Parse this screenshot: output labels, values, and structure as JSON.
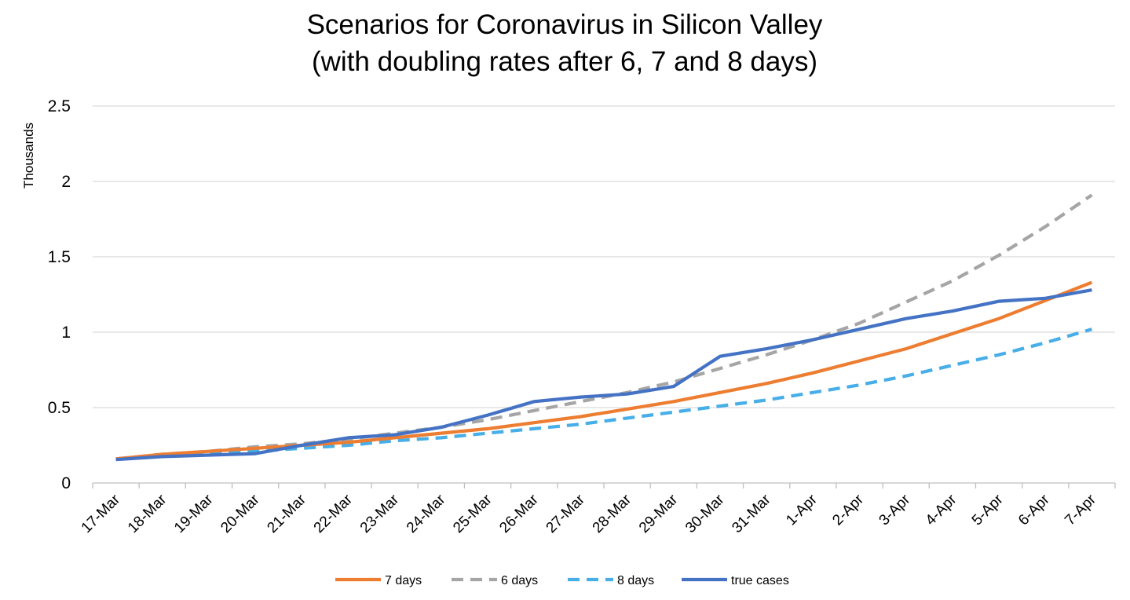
{
  "chart_data": {
    "type": "line",
    "title_lines": [
      "Scenarios for Coronavirus in Silicon Valley",
      "(with doubling rates after 6, 7 and 8 days)"
    ],
    "xlabel": "",
    "ylabel": "",
    "y_unit_label": "Thousands",
    "categories": [
      "17-Mar",
      "18-Mar",
      "19-Mar",
      "20-Mar",
      "21-Mar",
      "22-Mar",
      "23-Mar",
      "24-Mar",
      "25-Mar",
      "26-Mar",
      "27-Mar",
      "28-Mar",
      "29-Mar",
      "30-Mar",
      "31-Mar",
      "1-Apr",
      "2-Apr",
      "3-Apr",
      "4-Apr",
      "5-Apr",
      "6-Apr",
      "7-Apr"
    ],
    "ylim": [
      0,
      2.5
    ],
    "yticks": [
      0,
      0.5,
      1,
      1.5,
      2,
      2.5
    ],
    "ytick_labels": [
      "0",
      "0.5",
      "1",
      "1.5",
      "2",
      "2.5"
    ],
    "grid": true,
    "legend_position": "bottom",
    "series": [
      {
        "name": "7 days",
        "color": "#ed7d31",
        "dash": "solid",
        "values": [
          0.16,
          0.19,
          0.21,
          0.23,
          0.25,
          0.27,
          0.3,
          0.33,
          0.36,
          0.4,
          0.44,
          0.49,
          0.54,
          0.6,
          0.66,
          0.73,
          0.81,
          0.89,
          0.99,
          1.09,
          1.21,
          1.33
        ]
      },
      {
        "name": "6 days",
        "color": "#a5a5a5",
        "dash": "dashed",
        "values": [
          0.16,
          0.19,
          0.21,
          0.24,
          0.26,
          0.29,
          0.33,
          0.37,
          0.42,
          0.48,
          0.54,
          0.6,
          0.67,
          0.76,
          0.85,
          0.95,
          1.06,
          1.2,
          1.34,
          1.51,
          1.7,
          1.91
        ]
      },
      {
        "name": "8 days",
        "color": "#47aee8",
        "dash": "dashed",
        "values": [
          0.16,
          0.18,
          0.2,
          0.21,
          0.23,
          0.25,
          0.28,
          0.3,
          0.33,
          0.36,
          0.39,
          0.43,
          0.47,
          0.51,
          0.55,
          0.6,
          0.65,
          0.71,
          0.78,
          0.85,
          0.93,
          1.02
        ]
      },
      {
        "name": "true cases",
        "color": "#4472c4",
        "dash": "solid",
        "values": [
          0.155,
          0.175,
          0.185,
          0.195,
          0.25,
          0.3,
          0.32,
          0.37,
          0.45,
          0.54,
          0.57,
          0.59,
          0.64,
          0.84,
          0.89,
          0.95,
          1.02,
          1.09,
          1.14,
          1.205,
          1.225,
          1.28
        ]
      }
    ]
  }
}
